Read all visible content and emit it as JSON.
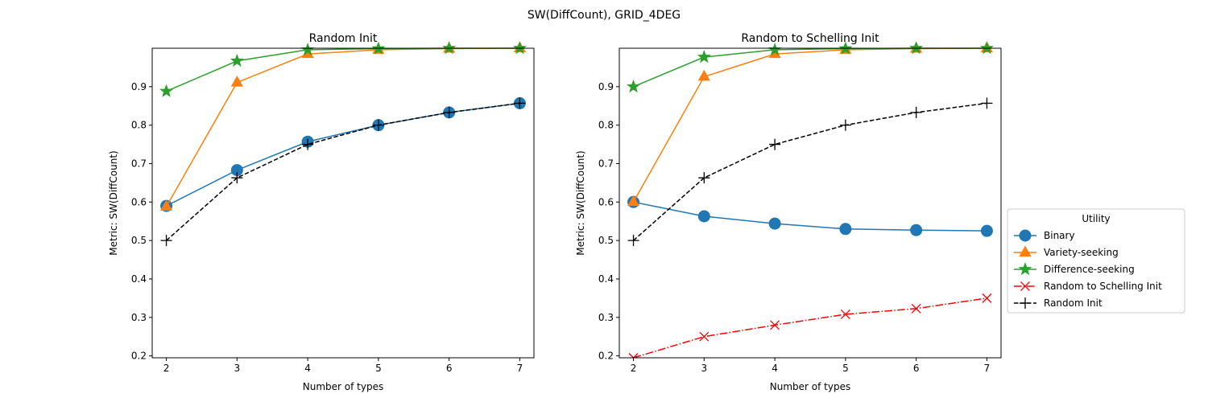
{
  "figure": {
    "suptitle": "SW(DiffCount), GRID_4DEG"
  },
  "legend": {
    "title": "Utility",
    "placement": "center-right",
    "entries": [
      {
        "label": "Binary",
        "color": "#1f77b4",
        "marker": "circle",
        "line": "solid"
      },
      {
        "label": "Variety-seeking",
        "color": "#ff7f0e",
        "marker": "triangle",
        "line": "solid"
      },
      {
        "label": "Difference-seeking",
        "color": "#2ca02c",
        "marker": "star",
        "line": "solid"
      },
      {
        "label": "Random to Schelling Init",
        "color": "#ff0000",
        "marker": "x",
        "line": "dashdot"
      },
      {
        "label": "Random Init",
        "color": "#000000",
        "marker": "plus",
        "line": "dashed"
      }
    ]
  },
  "chart_data": [
    {
      "type": "line",
      "title": "Random Init",
      "xlabel": "Number of types",
      "ylabel": "Metric: SW(DiffCount)",
      "x": [
        2,
        3,
        4,
        5,
        6,
        7
      ],
      "xlim": [
        1.8,
        7.2
      ],
      "ylim": [
        0.195,
        1.0
      ],
      "xticks": [
        "2",
        "3",
        "4",
        "5",
        "6",
        "7"
      ],
      "yticks": [
        "0.2",
        "0.3",
        "0.4",
        "0.5",
        "0.6",
        "0.7",
        "0.8",
        "0.9"
      ],
      "grid": false,
      "series": [
        {
          "name": "Binary",
          "color": "#1f77b4",
          "marker": "circle",
          "line": "solid",
          "values": [
            0.59,
            0.683,
            0.757,
            0.8,
            0.833,
            0.857
          ]
        },
        {
          "name": "Variety-seeking",
          "color": "#ff7f0e",
          "marker": "triangle",
          "line": "solid",
          "values": [
            0.588,
            0.911,
            0.985,
            0.996,
            0.999,
            1.0
          ]
        },
        {
          "name": "Difference-seeking",
          "color": "#2ca02c",
          "marker": "star",
          "line": "solid",
          "values": [
            0.888,
            0.967,
            0.996,
            0.999,
            1.0,
            1.0
          ]
        },
        {
          "name": "Random Init",
          "color": "#000000",
          "marker": "plus",
          "line": "dashed",
          "values": [
            0.5,
            0.663,
            0.75,
            0.8,
            0.833,
            0.857
          ]
        }
      ]
    },
    {
      "type": "line",
      "title": "Random to Schelling Init",
      "xlabel": "Number of types",
      "ylabel": "Metric: SW(DiffCount)",
      "x": [
        2,
        3,
        4,
        5,
        6,
        7
      ],
      "xlim": [
        1.8,
        7.2
      ],
      "ylim": [
        0.195,
        1.0
      ],
      "xticks": [
        "2",
        "3",
        "4",
        "5",
        "6",
        "7"
      ],
      "yticks": [
        "0.2",
        "0.3",
        "0.4",
        "0.5",
        "0.6",
        "0.7",
        "0.8",
        "0.9"
      ],
      "grid": false,
      "series": [
        {
          "name": "Binary",
          "color": "#1f77b4",
          "marker": "circle",
          "line": "solid",
          "values": [
            0.6,
            0.563,
            0.544,
            0.53,
            0.527,
            0.525
          ]
        },
        {
          "name": "Variety-seeking",
          "color": "#ff7f0e",
          "marker": "triangle",
          "line": "solid",
          "values": [
            0.6,
            0.926,
            0.985,
            0.996,
            0.999,
            1.0
          ]
        },
        {
          "name": "Difference-seeking",
          "color": "#2ca02c",
          "marker": "star",
          "line": "solid",
          "values": [
            0.9,
            0.977,
            0.996,
            0.999,
            1.0,
            1.0
          ]
        },
        {
          "name": "Random to Schelling Init",
          "color": "#ff0000",
          "marker": "x",
          "line": "dashdot",
          "values": [
            0.195,
            0.25,
            0.28,
            0.308,
            0.323,
            0.35
          ]
        },
        {
          "name": "Random Init",
          "color": "#000000",
          "marker": "plus",
          "line": "dashed",
          "values": [
            0.5,
            0.663,
            0.75,
            0.8,
            0.833,
            0.857
          ]
        }
      ]
    }
  ]
}
